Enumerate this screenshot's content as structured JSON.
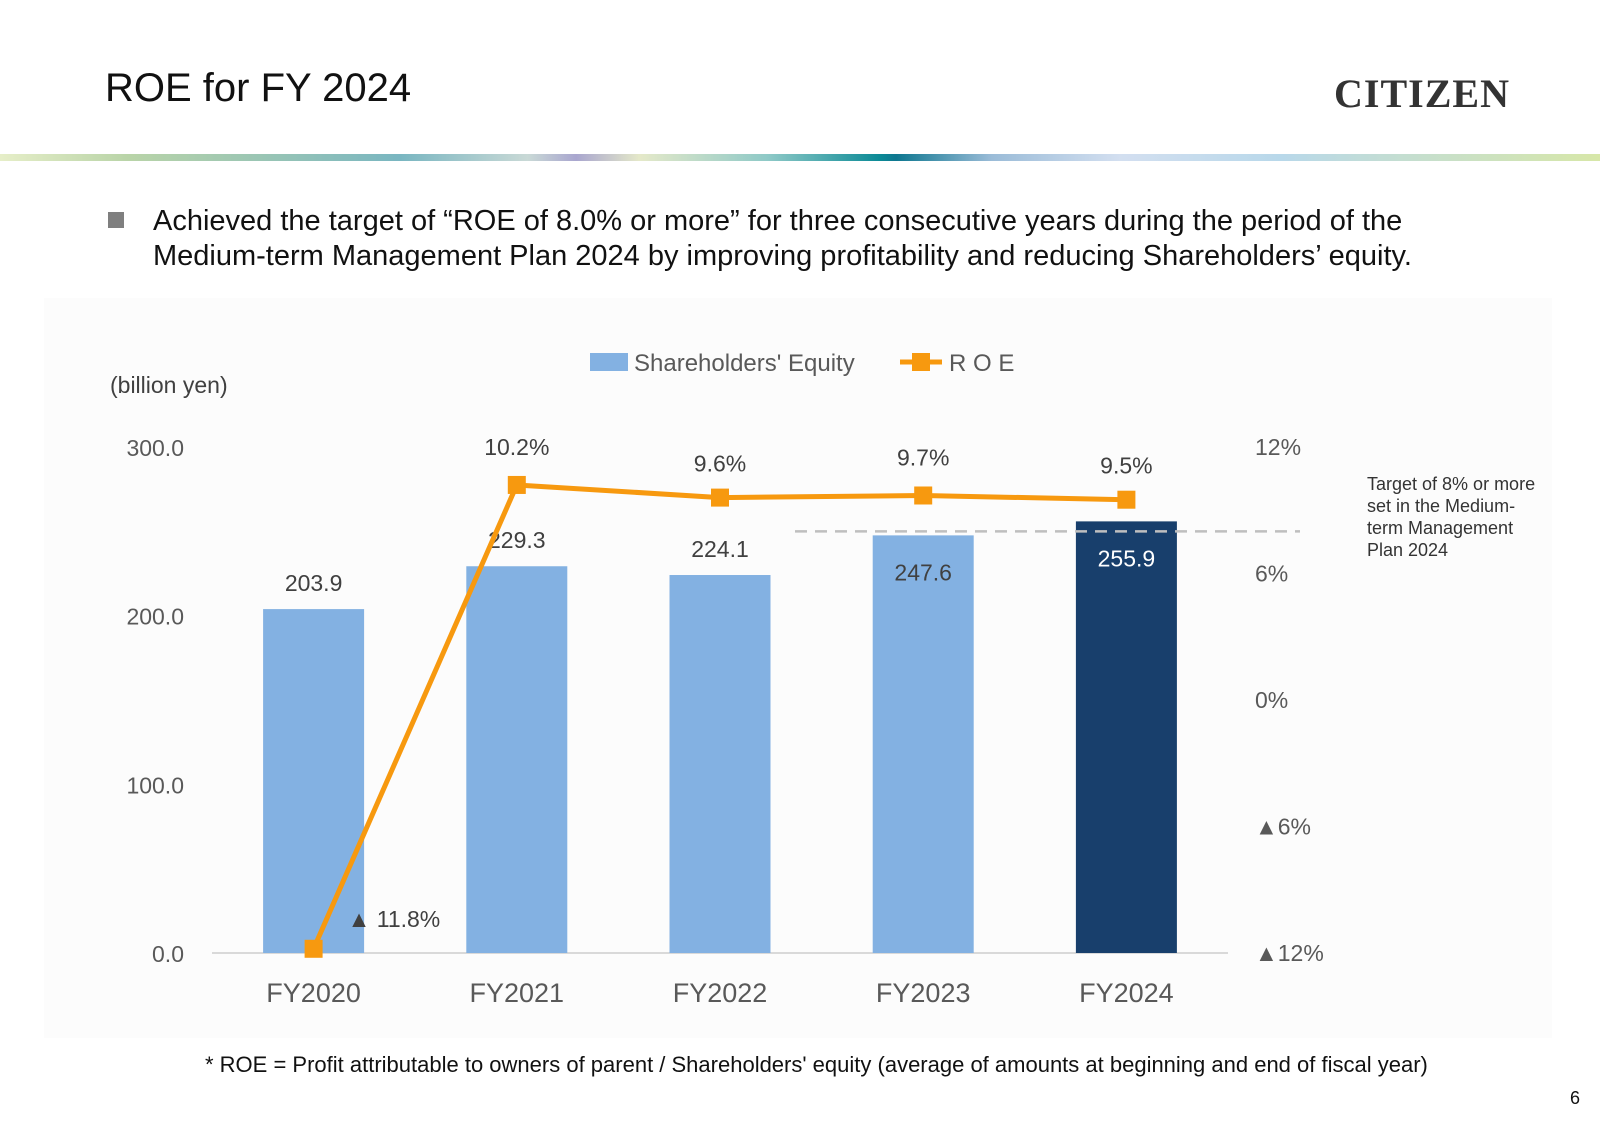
{
  "slide": {
    "title": "ROE for FY 2024",
    "logo_text": "CITIZEN",
    "bullet": "Achieved the target of “ROE of 8.0% or more” for three consecutive years during the period of the Medium-term Management Plan 2024 by improving profitability and reducing Shareholders’ equity.",
    "footnote": "* ROE = Profit attributable to owners of parent / Shareholders' equity (average of amounts at beginning and end of fiscal year)",
    "page_number": "6"
  },
  "chart_data": {
    "type": "bar",
    "categories": [
      "FY2020",
      "FY2021",
      "FY2022",
      "FY2023",
      "FY2024"
    ],
    "series": [
      {
        "name": "Shareholders' Equity",
        "kind": "bar",
        "axis": "left",
        "values": [
          203.9,
          229.3,
          224.1,
          247.6,
          255.9
        ],
        "labels": [
          "203.9",
          "229.3",
          "224.1",
          "247.6",
          "255.9"
        ],
        "color": "#83b1e2",
        "highlight_color": "#183f6c",
        "highlight_index": 4
      },
      {
        "name": "R O E",
        "kind": "line",
        "axis": "right",
        "values": [
          -11.8,
          10.2,
          9.6,
          9.7,
          9.5
        ],
        "labels": [
          "▲ 11.8%",
          "10.2%",
          "9.6%",
          "9.7%",
          "9.5%"
        ],
        "color": "#f7990f"
      }
    ],
    "left_axis": {
      "unit_label": "(billion yen)",
      "ticks": [
        0,
        100,
        200,
        300
      ],
      "tick_labels": [
        "0.0",
        "100.0",
        "200.0",
        "300.0"
      ],
      "ylim": [
        0,
        300
      ]
    },
    "right_axis": {
      "ticks": [
        -12,
        -6,
        0,
        6,
        12
      ],
      "tick_labels": [
        "▲12%",
        "▲6%",
        "0%",
        "6%",
        "12%"
      ],
      "ylim": [
        -12,
        12
      ]
    },
    "target": {
      "value": 8,
      "label": "Target of 8% or more set in the Medium-term Management Plan 2024",
      "label_lines": [
        "Target of 8% or more",
        "set in the Medium-",
        "term Management",
        "Plan 2024"
      ],
      "style": "dashed",
      "color": "#bfbfbf"
    },
    "legend_position": "top-center"
  }
}
